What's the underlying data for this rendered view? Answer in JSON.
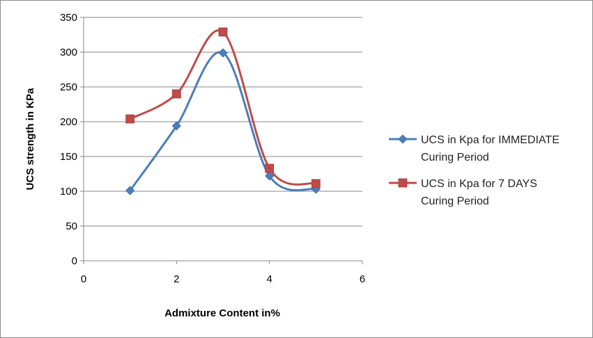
{
  "chart_data": {
    "type": "scatter",
    "xlabel": "Admixture Content in%",
    "ylabel": "UCS strength in KPa",
    "xlim": [
      0,
      6
    ],
    "ylim": [
      0,
      350
    ],
    "xticks": [
      0,
      2,
      4,
      6
    ],
    "yticks": [
      0,
      50,
      100,
      150,
      200,
      250,
      300,
      350
    ],
    "grid": "horizontal",
    "legend_position": "right",
    "series": [
      {
        "name_lines": [
          "UCS in Kpa for IMMEDIATE",
          "Curing Period"
        ],
        "color": "#4a7ebb",
        "marker": "diamond",
        "x": [
          1,
          2,
          3,
          4,
          5
        ],
        "y": [
          101,
          194,
          299,
          122,
          103
        ]
      },
      {
        "name_lines": [
          "UCS in Kpa for 7 DAYS",
          "Curing Period"
        ],
        "color": "#be4b48",
        "marker": "square",
        "x": [
          1,
          2,
          3,
          4,
          5
        ],
        "y": [
          204,
          240,
          329,
          133,
          111
        ]
      }
    ]
  }
}
